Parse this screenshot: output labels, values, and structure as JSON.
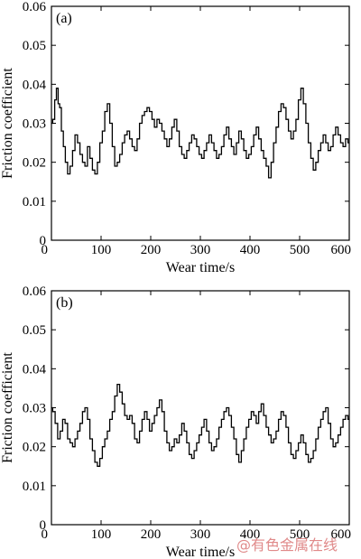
{
  "chart_data": [
    {
      "type": "line",
      "panel_label": "(a)",
      "xlabel": "Wear time/s",
      "ylabel": "Friction coefficient",
      "xlim": [
        0,
        600
      ],
      "ylim": [
        0,
        0.06
      ],
      "xticks": [
        0,
        100,
        200,
        300,
        400,
        500,
        600
      ],
      "yticks": [
        "0",
        "0.01",
        "0.02",
        "0.03",
        "0.04",
        "0.05",
        "0.06"
      ],
      "grid": false,
      "series": [
        {
          "x": [
            0,
            5,
            8,
            12,
            15,
            18,
            22,
            26,
            30,
            35,
            40,
            45,
            50,
            55,
            60,
            65,
            70,
            75,
            80,
            85,
            90,
            95,
            100,
            105,
            110,
            115,
            120,
            125,
            130,
            135,
            140,
            145,
            150,
            155,
            160,
            165,
            170,
            175,
            180,
            185,
            190,
            195,
            200,
            205,
            210,
            215,
            220,
            225,
            230,
            235,
            240,
            245,
            250,
            255,
            260,
            265,
            270,
            275,
            280,
            285,
            290,
            295,
            300,
            305,
            310,
            315,
            320,
            325,
            330,
            335,
            340,
            345,
            350,
            355,
            360,
            365,
            370,
            375,
            380,
            385,
            390,
            395,
            400,
            405,
            410,
            415,
            420,
            425,
            430,
            435,
            440,
            445,
            450,
            455,
            460,
            465,
            470,
            475,
            480,
            485,
            490,
            495,
            500,
            505,
            510,
            515,
            520,
            525,
            530,
            535,
            540,
            545,
            550,
            555,
            560,
            565,
            570,
            575,
            580,
            585,
            590,
            595,
            600
          ],
          "values": [
            0.03,
            0.031,
            0.036,
            0.039,
            0.035,
            0.034,
            0.028,
            0.024,
            0.02,
            0.017,
            0.019,
            0.023,
            0.027,
            0.025,
            0.022,
            0.02,
            0.019,
            0.024,
            0.021,
            0.018,
            0.017,
            0.02,
            0.025,
            0.028,
            0.033,
            0.035,
            0.03,
            0.024,
            0.019,
            0.02,
            0.022,
            0.025,
            0.027,
            0.028,
            0.026,
            0.024,
            0.023,
            0.026,
            0.03,
            0.032,
            0.033,
            0.034,
            0.033,
            0.031,
            0.029,
            0.031,
            0.03,
            0.028,
            0.026,
            0.024,
            0.026,
            0.029,
            0.031,
            0.028,
            0.024,
            0.022,
            0.021,
            0.023,
            0.025,
            0.027,
            0.026,
            0.024,
            0.022,
            0.021,
            0.023,
            0.025,
            0.027,
            0.025,
            0.023,
            0.021,
            0.022,
            0.024,
            0.027,
            0.029,
            0.026,
            0.024,
            0.022,
            0.025,
            0.028,
            0.026,
            0.023,
            0.021,
            0.022,
            0.024,
            0.027,
            0.029,
            0.026,
            0.023,
            0.021,
            0.019,
            0.016,
            0.02,
            0.025,
            0.029,
            0.033,
            0.035,
            0.034,
            0.031,
            0.028,
            0.026,
            0.028,
            0.031,
            0.036,
            0.039,
            0.035,
            0.03,
            0.025,
            0.021,
            0.018,
            0.02,
            0.023,
            0.025,
            0.027,
            0.025,
            0.023,
            0.024,
            0.027,
            0.029,
            0.027,
            0.025,
            0.024,
            0.026,
            0.025
          ]
        }
      ]
    },
    {
      "type": "line",
      "panel_label": "(b)",
      "xlabel": "Wear time/s",
      "ylabel": "Friction coefficient",
      "xlim": [
        0,
        600
      ],
      "ylim": [
        0,
        0.06
      ],
      "xticks": [
        0,
        100,
        200,
        300,
        400,
        500,
        600
      ],
      "yticks": [
        "0",
        "0.01",
        "0.02",
        "0.03",
        "0.04",
        "0.05",
        "0.06"
      ],
      "grid": false,
      "series": [
        {
          "x": [
            0,
            5,
            10,
            15,
            20,
            25,
            30,
            35,
            40,
            45,
            50,
            55,
            60,
            65,
            70,
            75,
            80,
            85,
            90,
            95,
            100,
            105,
            110,
            115,
            120,
            125,
            130,
            135,
            140,
            145,
            150,
            155,
            160,
            165,
            170,
            175,
            180,
            185,
            190,
            195,
            200,
            205,
            210,
            215,
            220,
            225,
            230,
            235,
            240,
            245,
            250,
            255,
            260,
            265,
            270,
            275,
            280,
            285,
            290,
            295,
            300,
            305,
            310,
            315,
            320,
            325,
            330,
            335,
            340,
            345,
            350,
            355,
            360,
            365,
            370,
            375,
            380,
            385,
            390,
            395,
            400,
            405,
            410,
            415,
            420,
            425,
            430,
            435,
            440,
            445,
            450,
            455,
            460,
            465,
            470,
            475,
            480,
            485,
            490,
            495,
            500,
            505,
            510,
            515,
            520,
            525,
            530,
            535,
            540,
            545,
            550,
            555,
            560,
            565,
            570,
            575,
            580,
            585,
            590,
            595,
            600
          ],
          "values": [
            0.03,
            0.029,
            0.026,
            0.022,
            0.024,
            0.027,
            0.026,
            0.022,
            0.021,
            0.02,
            0.022,
            0.024,
            0.026,
            0.029,
            0.03,
            0.027,
            0.022,
            0.019,
            0.016,
            0.015,
            0.017,
            0.02,
            0.022,
            0.024,
            0.027,
            0.029,
            0.033,
            0.036,
            0.034,
            0.031,
            0.028,
            0.027,
            0.028,
            0.026,
            0.022,
            0.021,
            0.024,
            0.027,
            0.029,
            0.027,
            0.024,
            0.026,
            0.028,
            0.03,
            0.032,
            0.029,
            0.024,
            0.021,
            0.019,
            0.02,
            0.022,
            0.021,
            0.023,
            0.026,
            0.024,
            0.021,
            0.018,
            0.017,
            0.019,
            0.021,
            0.023,
            0.025,
            0.027,
            0.024,
            0.021,
            0.019,
            0.02,
            0.022,
            0.025,
            0.027,
            0.029,
            0.03,
            0.028,
            0.025,
            0.022,
            0.018,
            0.016,
            0.019,
            0.022,
            0.025,
            0.027,
            0.029,
            0.028,
            0.026,
            0.029,
            0.031,
            0.028,
            0.025,
            0.023,
            0.021,
            0.022,
            0.024,
            0.027,
            0.029,
            0.028,
            0.025,
            0.021,
            0.018,
            0.017,
            0.019,
            0.021,
            0.023,
            0.021,
            0.018,
            0.016,
            0.017,
            0.019,
            0.022,
            0.025,
            0.027,
            0.029,
            0.03,
            0.026,
            0.022,
            0.02,
            0.021,
            0.023,
            0.025,
            0.027,
            0.028,
            0.027
          ]
        }
      ]
    }
  ],
  "watermark_text": "@有色金属在线"
}
